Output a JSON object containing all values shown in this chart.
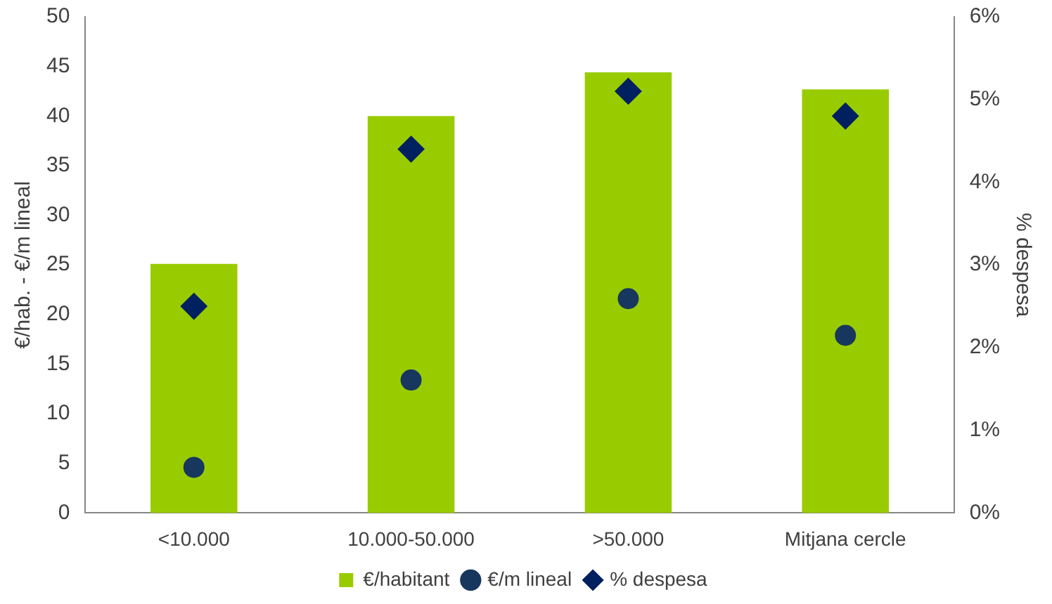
{
  "chart_data": {
    "type": "bar",
    "ylabel": "€/hab. - €/m lineal",
    "y2label": "% despesa",
    "categories": [
      "<10.000",
      "10.000-50.000",
      ">50.000",
      "Mitjana cercle"
    ],
    "series": [
      {
        "name": "€/habitant",
        "color": "#99cc00",
        "values": [
          25.1,
          40,
          44.4,
          42.7
        ]
      },
      {
        "name": "€/m lineal",
        "type": "scatter",
        "marker": "circle",
        "color": "#17375e",
        "values": [
          4.6,
          13.4,
          21.6,
          17.9
        ]
      },
      {
        "name": "% despesa",
        "type": "scatter",
        "marker": "diamond",
        "axis": "y2",
        "color": "#002060",
        "values": [
          2.5,
          4.4,
          5.1,
          4.8
        ]
      }
    ],
    "ylim": [
      0,
      50
    ],
    "yticks": [
      0,
      5,
      10,
      15,
      20,
      25,
      30,
      35,
      40,
      45,
      50
    ],
    "y2lim": [
      0,
      6
    ],
    "y2ticks": [
      {
        "value": 0,
        "label": "0%"
      },
      {
        "value": 1,
        "label": "1%"
      },
      {
        "value": 2,
        "label": "2%"
      },
      {
        "value": 3,
        "label": "3%"
      },
      {
        "value": 4,
        "label": "4%"
      },
      {
        "value": 5,
        "label": "5%"
      },
      {
        "value": 6,
        "label": "6%"
      }
    ],
    "grid": false,
    "legend": "bottom"
  }
}
